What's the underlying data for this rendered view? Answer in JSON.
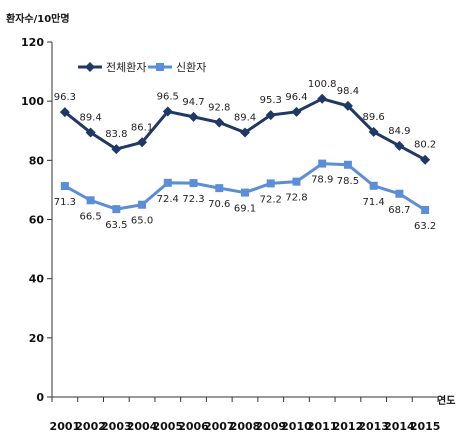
{
  "chart_data": {
    "type": "line",
    "ylabel": "환자수/10만명",
    "xlabel": "연도",
    "categories": [
      "2001",
      "2002",
      "2003",
      "2004",
      "2005",
      "2006",
      "2007",
      "2008",
      "2009",
      "2010",
      "2011",
      "2012",
      "2013",
      "2014",
      "2015"
    ],
    "ylim": [
      0,
      120
    ],
    "yticks": [
      0,
      20,
      40,
      60,
      80,
      100,
      120
    ],
    "grid": false,
    "legend_position": "top",
    "series": [
      {
        "name": "전체환자",
        "color": "#1f3864",
        "marker": "diamond",
        "values": [
          96.3,
          89.4,
          83.8,
          86.1,
          96.5,
          94.7,
          92.8,
          89.4,
          95.3,
          96.4,
          100.8,
          98.4,
          89.6,
          84.9,
          80.2
        ],
        "labels": [
          "96.3",
          "89.4",
          "83.8",
          "86.1",
          "96.5",
          "94.7",
          "92.8",
          "89.4",
          "95.3",
          "96.4",
          "100.8",
          "98.4",
          "89.6",
          "84.9",
          "80.2"
        ]
      },
      {
        "name": "신환자",
        "color": "#5b8ed6",
        "marker": "square",
        "values": [
          71.3,
          66.5,
          63.5,
          65.0,
          72.4,
          72.3,
          70.6,
          69.1,
          72.2,
          72.8,
          78.9,
          78.5,
          71.4,
          68.7,
          63.2
        ],
        "labels": [
          "71.3",
          "66.5",
          "63.5",
          "65.0",
          "72.4",
          "72.3",
          "70.6",
          "69.1",
          "72.2",
          "72.8",
          "78.9",
          "78.5",
          "71.4",
          "68.7",
          "63.2"
        ]
      }
    ]
  }
}
